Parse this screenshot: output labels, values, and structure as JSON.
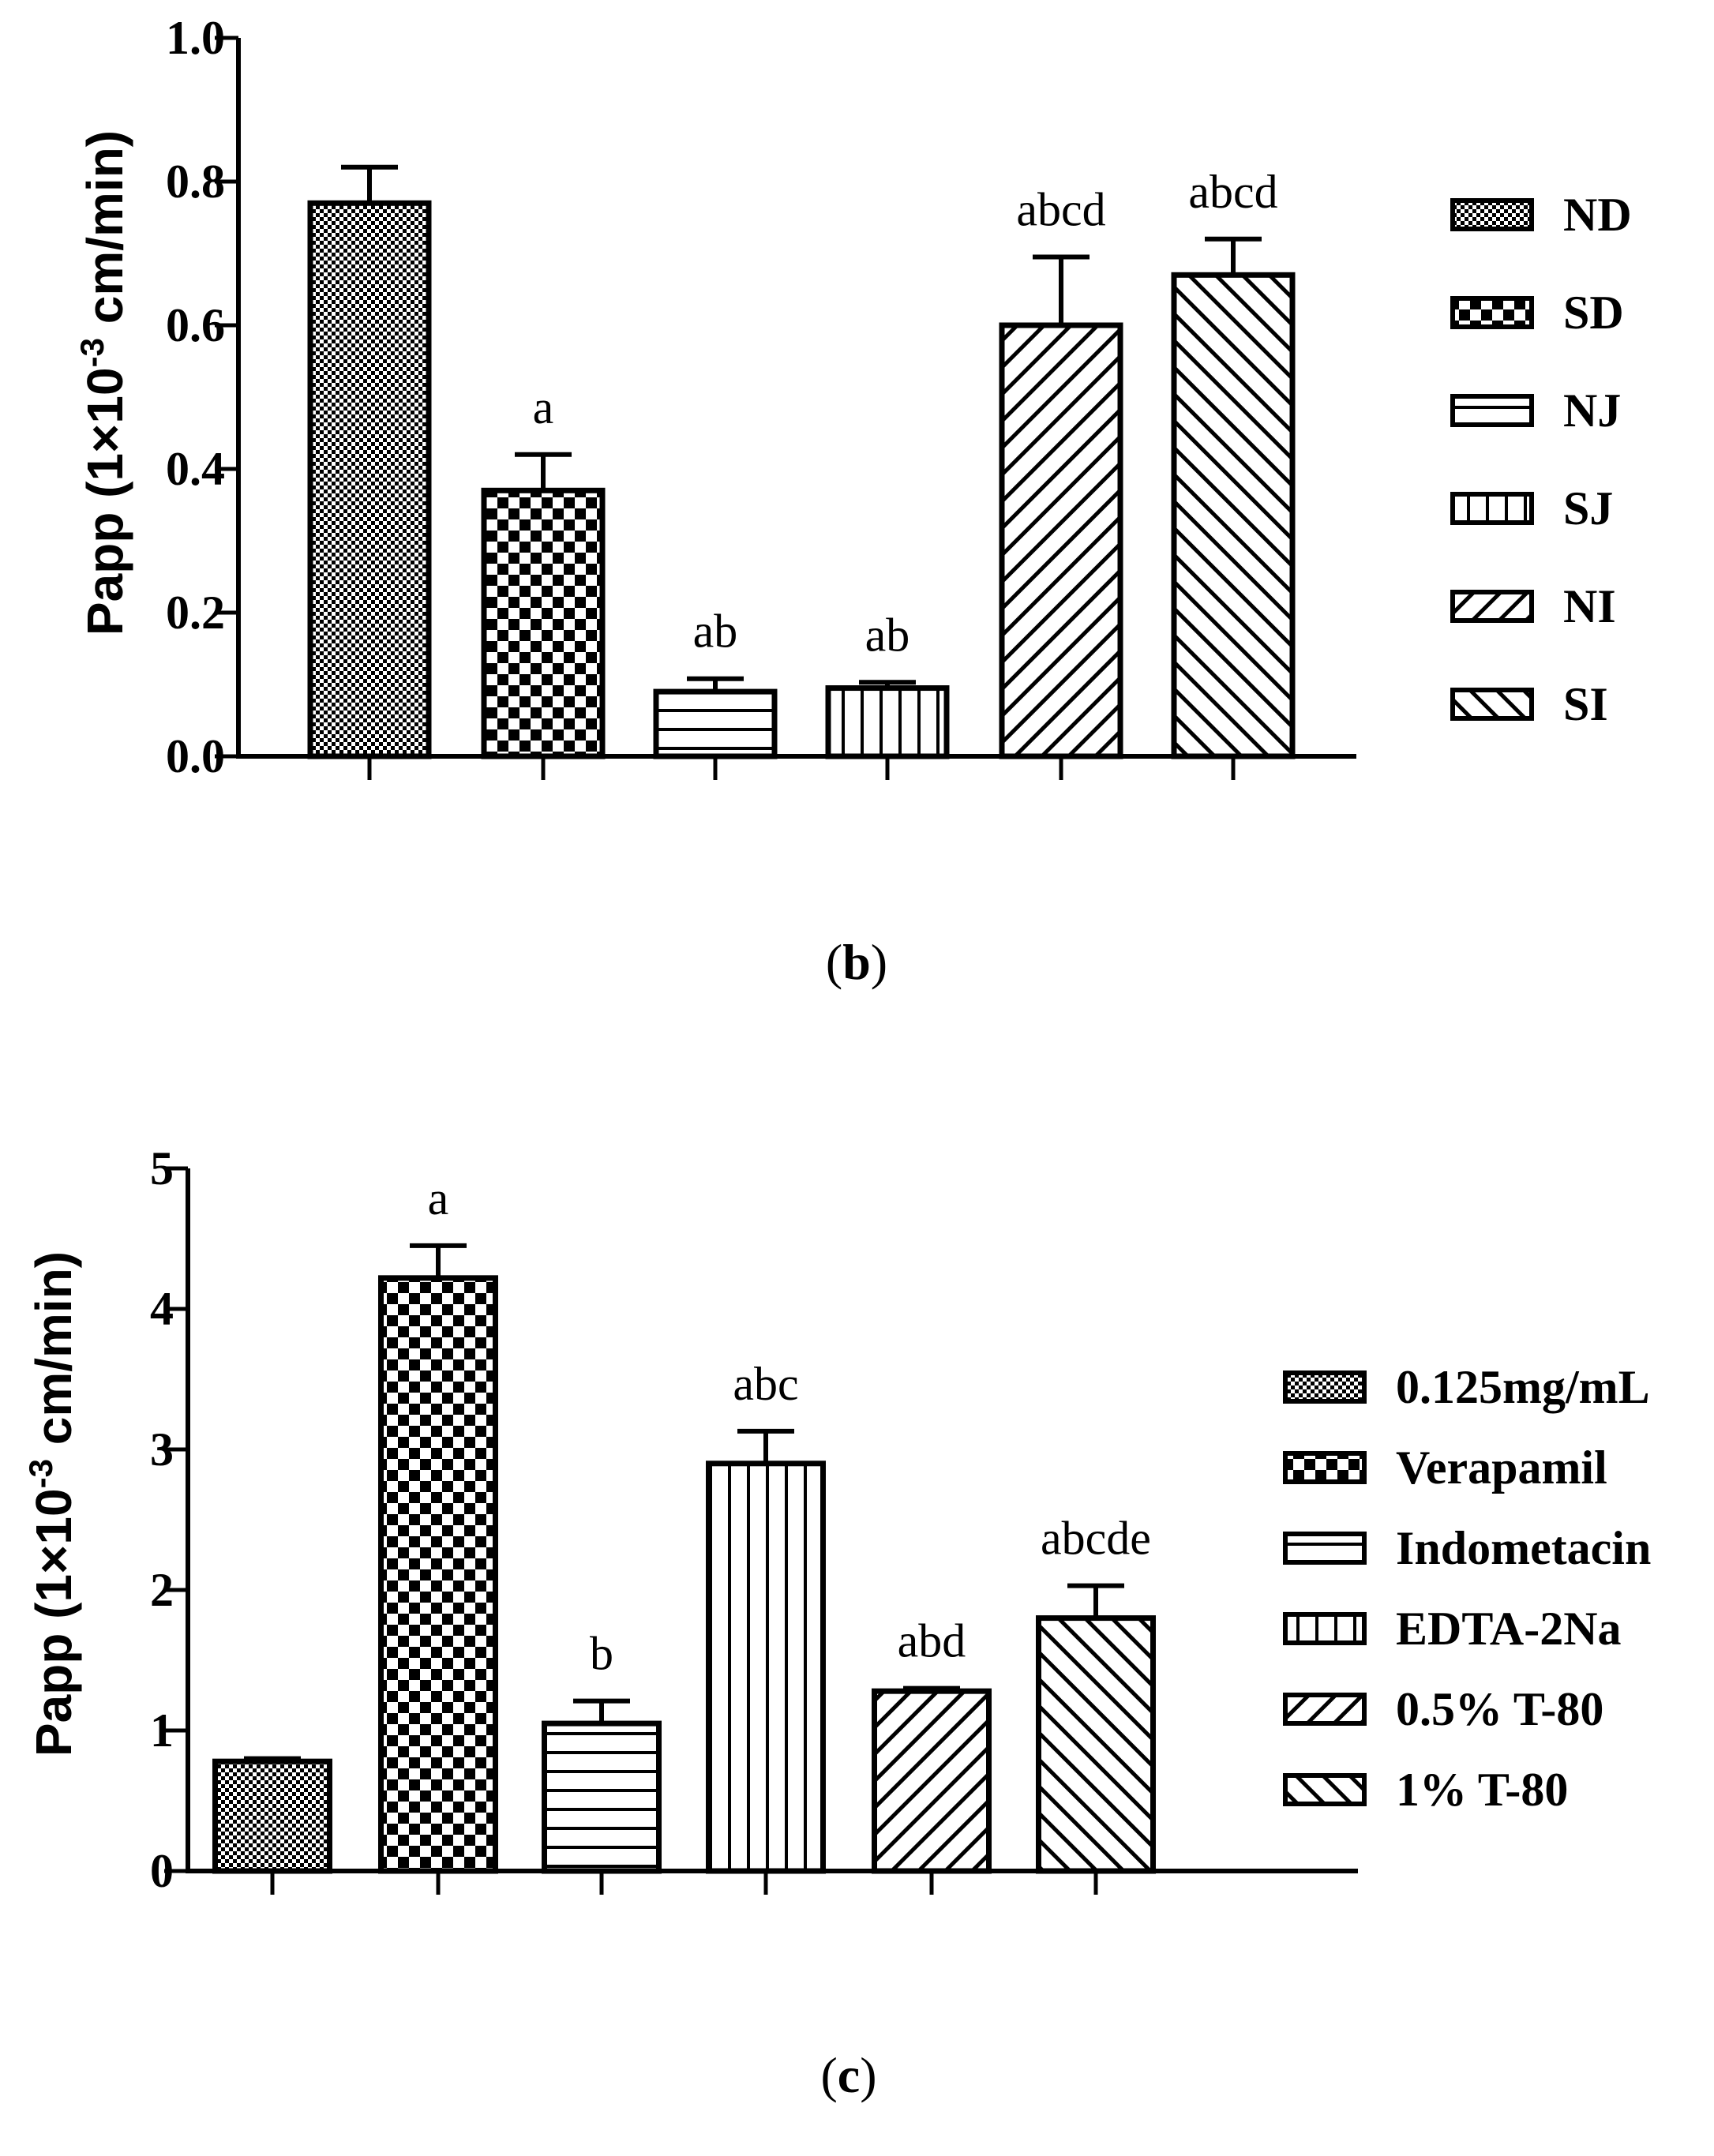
{
  "chart_data": [
    {
      "type": "bar",
      "panel": "b",
      "caption_letter": "b",
      "ylabel_main": "Papp (1×10",
      "ylabel_exp": "-3",
      "ylabel_tail": " cm/min)",
      "ylim": [
        0,
        1.0
      ],
      "yticks": [
        "0.0",
        "0.2",
        "0.4",
        "0.6",
        "0.8",
        "1.0"
      ],
      "ytick_values": [
        0,
        0.2,
        0.4,
        0.6,
        0.8,
        1.0
      ],
      "categories": [
        "ND",
        "SD",
        "NJ",
        "SJ",
        "NI",
        "SI"
      ],
      "values": [
        0.77,
        0.37,
        0.09,
        0.095,
        0.6,
        0.67
      ],
      "errors": [
        0.05,
        0.05,
        0.018,
        0.008,
        0.095,
        0.05
      ],
      "significance": [
        "",
        "a",
        "ab",
        "ab",
        "abcd",
        "abcd"
      ],
      "patterns": [
        "fine-check",
        "check",
        "hlines",
        "vlines",
        "diag-up",
        "diag-down"
      ],
      "legend_position": "right"
    },
    {
      "type": "bar",
      "panel": "c",
      "caption_letter": "c",
      "ylabel_main": "Papp (1×10",
      "ylabel_exp": "-3",
      "ylabel_tail": " cm/min)",
      "ylim": [
        0,
        5
      ],
      "yticks": [
        "0",
        "1",
        "2",
        "3",
        "4",
        "5"
      ],
      "ytick_values": [
        0,
        1,
        2,
        3,
        4,
        5
      ],
      "categories": [
        "0.125mg/mL",
        "Verapamil",
        "Indometacin",
        "EDTA-2Na",
        "0.5% T-80",
        "1% T-80"
      ],
      "values": [
        0.78,
        4.22,
        1.05,
        2.9,
        1.28,
        1.8
      ],
      "errors": [
        0.02,
        0.23,
        0.16,
        0.23,
        0.02,
        0.23
      ],
      "significance": [
        "",
        "a",
        "b",
        "abc",
        "abd",
        "abcde"
      ],
      "patterns": [
        "fine-check",
        "check",
        "hlines",
        "vlines",
        "diag-up",
        "diag-down"
      ],
      "legend_position": "right"
    }
  ],
  "colors": {
    "ink": "#000000",
    "fill": "#ffffff"
  }
}
